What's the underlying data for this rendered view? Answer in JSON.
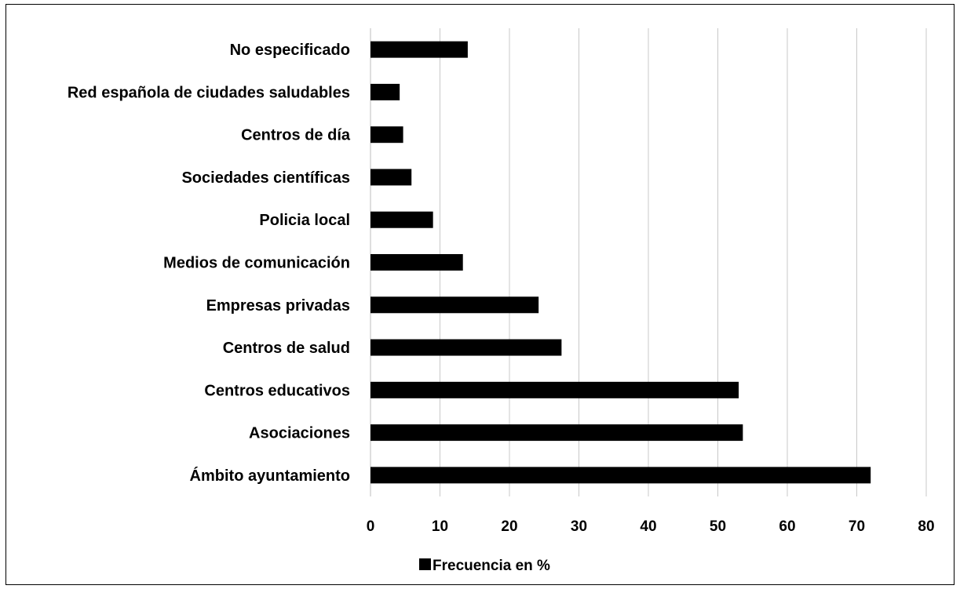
{
  "chart_data": {
    "type": "bar",
    "orientation": "horizontal",
    "title": "",
    "xlabel": "",
    "ylabel": "",
    "xlim": [
      0,
      80
    ],
    "x_ticks": [
      0,
      10,
      20,
      30,
      40,
      50,
      60,
      70,
      80
    ],
    "grid": "vertical",
    "legend_position": "bottom",
    "categories": [
      "No especificado",
      "Red española de ciudades saludables",
      "Centros de día",
      "Sociedades científicas",
      "Policia local",
      "Medios de comunicación",
      "Empresas privadas",
      "Centros de salud",
      "Centros educativos",
      "Asociaciones",
      "Ámbito ayuntamiento"
    ],
    "series": [
      {
        "name": "Frecuencia en %",
        "color": "#000000",
        "values": [
          14,
          4.2,
          4.7,
          5.9,
          9,
          13.3,
          24.2,
          27.5,
          53,
          53.6,
          72
        ]
      }
    ]
  }
}
